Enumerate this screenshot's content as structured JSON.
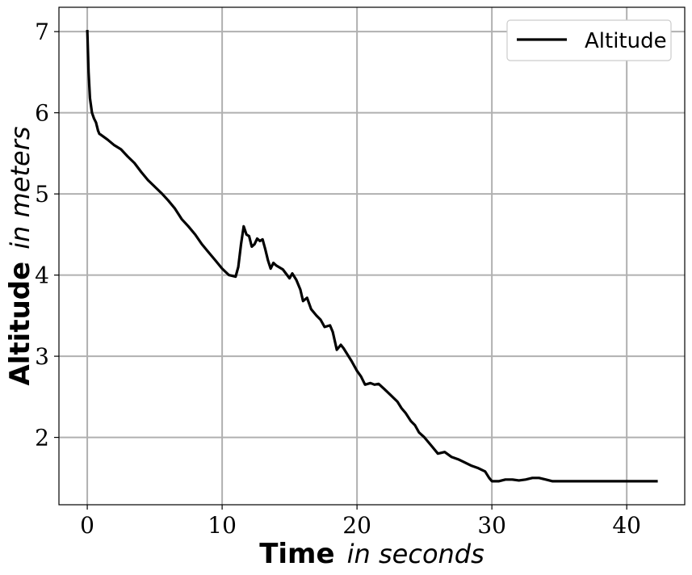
{
  "chart_data": {
    "type": "line",
    "title": "",
    "xlabel": {
      "bold": "Time",
      "italic": "in seconds"
    },
    "ylabel": {
      "bold": "Altitude",
      "italic": "in meters"
    },
    "xlim": [
      -2.1,
      44.3
    ],
    "ylim": [
      1.17,
      7.3
    ],
    "xticks": [
      0,
      10,
      20,
      30,
      40
    ],
    "yticks": [
      2,
      3,
      4,
      5,
      6,
      7
    ],
    "xtick_labels": [
      "0",
      "10",
      "20",
      "30",
      "40"
    ],
    "ytick_labels": [
      "2",
      "3",
      "4",
      "5",
      "6",
      "7"
    ],
    "grid": true,
    "legend": {
      "position": "top-right",
      "entries": [
        "Altitude"
      ]
    },
    "series": [
      {
        "name": "Altitude",
        "color": "#000000",
        "x": [
          0,
          0.1,
          0.2,
          0.35,
          0.5,
          0.65,
          0.8,
          0.9,
          1.0,
          1.5,
          2.0,
          2.5,
          3.0,
          3.5,
          4.0,
          4.5,
          5.0,
          5.5,
          6.0,
          6.5,
          7.0,
          7.5,
          8.0,
          8.5,
          9.0,
          9.5,
          10.0,
          10.5,
          11.0,
          11.2,
          11.4,
          11.6,
          11.8,
          12.0,
          12.2,
          12.4,
          12.6,
          12.8,
          13.0,
          13.2,
          13.4,
          13.6,
          13.8,
          14.0,
          14.5,
          15.0,
          15.2,
          15.5,
          15.8,
          16.0,
          16.3,
          16.6,
          17.0,
          17.3,
          17.6,
          18.0,
          18.2,
          18.5,
          18.8,
          19.0,
          19.3,
          19.6,
          20.0,
          20.3,
          20.6,
          21.0,
          21.3,
          21.6,
          22.0,
          22.5,
          23.0,
          23.3,
          23.6,
          24.0,
          24.3,
          24.6,
          25.0,
          25.5,
          26.0,
          26.5,
          27.0,
          27.5,
          28.0,
          28.5,
          29.0,
          29.5,
          29.8,
          30.0,
          30.5,
          31.0,
          31.5,
          32.0,
          32.5,
          33.0,
          33.5,
          34.0,
          34.5,
          35.0,
          36.0,
          38.0,
          40.0,
          42.0,
          42.3
        ],
        "y": [
          7.02,
          6.5,
          6.18,
          6.0,
          5.93,
          5.88,
          5.78,
          5.74,
          5.73,
          5.67,
          5.6,
          5.55,
          5.46,
          5.38,
          5.27,
          5.17,
          5.09,
          5.01,
          4.92,
          4.82,
          4.69,
          4.6,
          4.5,
          4.38,
          4.28,
          4.18,
          4.08,
          4.0,
          3.98,
          4.1,
          4.38,
          4.6,
          4.5,
          4.48,
          4.35,
          4.38,
          4.45,
          4.42,
          4.44,
          4.32,
          4.18,
          4.08,
          4.15,
          4.12,
          4.07,
          3.96,
          4.02,
          3.94,
          3.82,
          3.68,
          3.72,
          3.58,
          3.5,
          3.45,
          3.36,
          3.38,
          3.3,
          3.08,
          3.14,
          3.1,
          3.02,
          2.94,
          2.82,
          2.75,
          2.65,
          2.67,
          2.65,
          2.66,
          2.6,
          2.52,
          2.44,
          2.36,
          2.3,
          2.2,
          2.15,
          2.06,
          2.0,
          1.9,
          1.8,
          1.82,
          1.76,
          1.73,
          1.69,
          1.65,
          1.62,
          1.58,
          1.5,
          1.46,
          1.46,
          1.48,
          1.48,
          1.47,
          1.48,
          1.5,
          1.5,
          1.48,
          1.46,
          1.46,
          1.46,
          1.46,
          1.46,
          1.46,
          1.46
        ]
      }
    ]
  }
}
